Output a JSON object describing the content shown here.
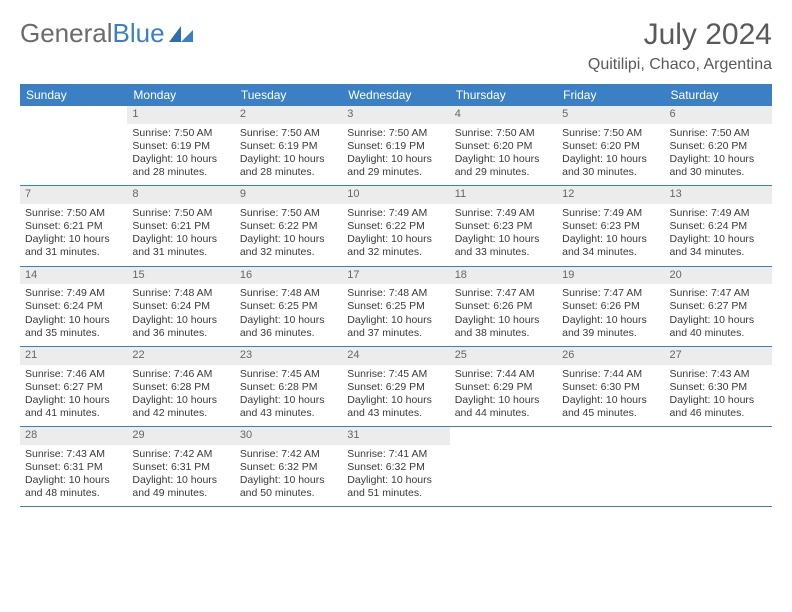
{
  "brand": {
    "part1": "General",
    "part2": "Blue"
  },
  "title": "July 2024",
  "location": "Quitilipi, Chaco, Argentina",
  "colors": {
    "header_bg": "#3b7fc4",
    "header_text": "#ffffff",
    "daynum_bg": "#ececec",
    "daynum_text": "#666666",
    "text": "#3a3a3a",
    "title_text": "#5a5a5a",
    "border": "#3b7fc4"
  },
  "dow": [
    "Sunday",
    "Monday",
    "Tuesday",
    "Wednesday",
    "Thursday",
    "Friday",
    "Saturday"
  ],
  "weeks": [
    [
      {
        "day": "",
        "sunrise": "",
        "sunset": "",
        "daylight": ""
      },
      {
        "day": "1",
        "sunrise": "Sunrise: 7:50 AM",
        "sunset": "Sunset: 6:19 PM",
        "daylight": "Daylight: 10 hours and 28 minutes."
      },
      {
        "day": "2",
        "sunrise": "Sunrise: 7:50 AM",
        "sunset": "Sunset: 6:19 PM",
        "daylight": "Daylight: 10 hours and 28 minutes."
      },
      {
        "day": "3",
        "sunrise": "Sunrise: 7:50 AM",
        "sunset": "Sunset: 6:19 PM",
        "daylight": "Daylight: 10 hours and 29 minutes."
      },
      {
        "day": "4",
        "sunrise": "Sunrise: 7:50 AM",
        "sunset": "Sunset: 6:20 PM",
        "daylight": "Daylight: 10 hours and 29 minutes."
      },
      {
        "day": "5",
        "sunrise": "Sunrise: 7:50 AM",
        "sunset": "Sunset: 6:20 PM",
        "daylight": "Daylight: 10 hours and 30 minutes."
      },
      {
        "day": "6",
        "sunrise": "Sunrise: 7:50 AM",
        "sunset": "Sunset: 6:20 PM",
        "daylight": "Daylight: 10 hours and 30 minutes."
      }
    ],
    [
      {
        "day": "7",
        "sunrise": "Sunrise: 7:50 AM",
        "sunset": "Sunset: 6:21 PM",
        "daylight": "Daylight: 10 hours and 31 minutes."
      },
      {
        "day": "8",
        "sunrise": "Sunrise: 7:50 AM",
        "sunset": "Sunset: 6:21 PM",
        "daylight": "Daylight: 10 hours and 31 minutes."
      },
      {
        "day": "9",
        "sunrise": "Sunrise: 7:50 AM",
        "sunset": "Sunset: 6:22 PM",
        "daylight": "Daylight: 10 hours and 32 minutes."
      },
      {
        "day": "10",
        "sunrise": "Sunrise: 7:49 AM",
        "sunset": "Sunset: 6:22 PM",
        "daylight": "Daylight: 10 hours and 32 minutes."
      },
      {
        "day": "11",
        "sunrise": "Sunrise: 7:49 AM",
        "sunset": "Sunset: 6:23 PM",
        "daylight": "Daylight: 10 hours and 33 minutes."
      },
      {
        "day": "12",
        "sunrise": "Sunrise: 7:49 AM",
        "sunset": "Sunset: 6:23 PM",
        "daylight": "Daylight: 10 hours and 34 minutes."
      },
      {
        "day": "13",
        "sunrise": "Sunrise: 7:49 AM",
        "sunset": "Sunset: 6:24 PM",
        "daylight": "Daylight: 10 hours and 34 minutes."
      }
    ],
    [
      {
        "day": "14",
        "sunrise": "Sunrise: 7:49 AM",
        "sunset": "Sunset: 6:24 PM",
        "daylight": "Daylight: 10 hours and 35 minutes."
      },
      {
        "day": "15",
        "sunrise": "Sunrise: 7:48 AM",
        "sunset": "Sunset: 6:24 PM",
        "daylight": "Daylight: 10 hours and 36 minutes."
      },
      {
        "day": "16",
        "sunrise": "Sunrise: 7:48 AM",
        "sunset": "Sunset: 6:25 PM",
        "daylight": "Daylight: 10 hours and 36 minutes."
      },
      {
        "day": "17",
        "sunrise": "Sunrise: 7:48 AM",
        "sunset": "Sunset: 6:25 PM",
        "daylight": "Daylight: 10 hours and 37 minutes."
      },
      {
        "day": "18",
        "sunrise": "Sunrise: 7:47 AM",
        "sunset": "Sunset: 6:26 PM",
        "daylight": "Daylight: 10 hours and 38 minutes."
      },
      {
        "day": "19",
        "sunrise": "Sunrise: 7:47 AM",
        "sunset": "Sunset: 6:26 PM",
        "daylight": "Daylight: 10 hours and 39 minutes."
      },
      {
        "day": "20",
        "sunrise": "Sunrise: 7:47 AM",
        "sunset": "Sunset: 6:27 PM",
        "daylight": "Daylight: 10 hours and 40 minutes."
      }
    ],
    [
      {
        "day": "21",
        "sunrise": "Sunrise: 7:46 AM",
        "sunset": "Sunset: 6:27 PM",
        "daylight": "Daylight: 10 hours and 41 minutes."
      },
      {
        "day": "22",
        "sunrise": "Sunrise: 7:46 AM",
        "sunset": "Sunset: 6:28 PM",
        "daylight": "Daylight: 10 hours and 42 minutes."
      },
      {
        "day": "23",
        "sunrise": "Sunrise: 7:45 AM",
        "sunset": "Sunset: 6:28 PM",
        "daylight": "Daylight: 10 hours and 43 minutes."
      },
      {
        "day": "24",
        "sunrise": "Sunrise: 7:45 AM",
        "sunset": "Sunset: 6:29 PM",
        "daylight": "Daylight: 10 hours and 43 minutes."
      },
      {
        "day": "25",
        "sunrise": "Sunrise: 7:44 AM",
        "sunset": "Sunset: 6:29 PM",
        "daylight": "Daylight: 10 hours and 44 minutes."
      },
      {
        "day": "26",
        "sunrise": "Sunrise: 7:44 AM",
        "sunset": "Sunset: 6:30 PM",
        "daylight": "Daylight: 10 hours and 45 minutes."
      },
      {
        "day": "27",
        "sunrise": "Sunrise: 7:43 AM",
        "sunset": "Sunset: 6:30 PM",
        "daylight": "Daylight: 10 hours and 46 minutes."
      }
    ],
    [
      {
        "day": "28",
        "sunrise": "Sunrise: 7:43 AM",
        "sunset": "Sunset: 6:31 PM",
        "daylight": "Daylight: 10 hours and 48 minutes."
      },
      {
        "day": "29",
        "sunrise": "Sunrise: 7:42 AM",
        "sunset": "Sunset: 6:31 PM",
        "daylight": "Daylight: 10 hours and 49 minutes."
      },
      {
        "day": "30",
        "sunrise": "Sunrise: 7:42 AM",
        "sunset": "Sunset: 6:32 PM",
        "daylight": "Daylight: 10 hours and 50 minutes."
      },
      {
        "day": "31",
        "sunrise": "Sunrise: 7:41 AM",
        "sunset": "Sunset: 6:32 PM",
        "daylight": "Daylight: 10 hours and 51 minutes."
      },
      {
        "day": "",
        "sunrise": "",
        "sunset": "",
        "daylight": ""
      },
      {
        "day": "",
        "sunrise": "",
        "sunset": "",
        "daylight": ""
      },
      {
        "day": "",
        "sunrise": "",
        "sunset": "",
        "daylight": ""
      }
    ]
  ]
}
